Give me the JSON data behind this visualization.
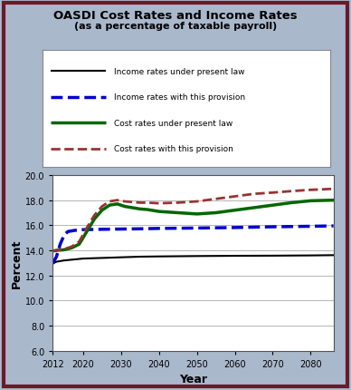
{
  "title": "OASDI Cost Rates and Income Rates",
  "subtitle": "(as a percentage of taxable payroll)",
  "xlabel": "Year",
  "ylabel": "Percent",
  "bg_color": "#aab8cc",
  "plot_bg_color": "#ffffff",
  "border_color": "#6b1a2a",
  "ylim": [
    6.0,
    20.0
  ],
  "xlim": [
    2012,
    2086
  ],
  "yticks": [
    6.0,
    8.0,
    10.0,
    12.0,
    14.0,
    16.0,
    18.0,
    20.0
  ],
  "xticks": [
    2012,
    2020,
    2030,
    2040,
    2050,
    2060,
    2070,
    2080
  ],
  "income_present_law": {
    "years": [
      2012,
      2013,
      2015,
      2020,
      2025,
      2030,
      2035,
      2040,
      2050,
      2060,
      2070,
      2080,
      2086
    ],
    "values": [
      12.95,
      13.1,
      13.2,
      13.35,
      13.4,
      13.45,
      13.5,
      13.52,
      13.55,
      13.57,
      13.58,
      13.6,
      13.62
    ],
    "color": "#000000",
    "linestyle": "-",
    "linewidth": 1.5,
    "label": "Income rates under present law"
  },
  "income_provision": {
    "years": [
      2012,
      2013,
      2014,
      2015,
      2016,
      2018,
      2020,
      2025,
      2030,
      2035,
      2040,
      2050,
      2060,
      2070,
      2080,
      2086
    ],
    "values": [
      12.95,
      13.5,
      14.5,
      15.2,
      15.5,
      15.6,
      15.65,
      15.68,
      15.7,
      15.72,
      15.75,
      15.78,
      15.82,
      15.88,
      15.92,
      15.95
    ],
    "color": "#0000cc",
    "linestyle": "--",
    "linewidth": 2.5,
    "label": "Income rates with this provision"
  },
  "cost_present_law": {
    "years": [
      2012,
      2013,
      2015,
      2017,
      2019,
      2021,
      2023,
      2025,
      2027,
      2029,
      2031,
      2033,
      2035,
      2037,
      2040,
      2045,
      2050,
      2055,
      2060,
      2065,
      2070,
      2075,
      2080,
      2086
    ],
    "values": [
      13.95,
      14.0,
      14.05,
      14.2,
      14.5,
      15.5,
      16.5,
      17.2,
      17.6,
      17.7,
      17.5,
      17.4,
      17.3,
      17.25,
      17.1,
      17.0,
      16.9,
      17.0,
      17.2,
      17.4,
      17.6,
      17.8,
      17.95,
      18.0
    ],
    "color": "#006600",
    "linestyle": "-",
    "linewidth": 2.5,
    "label": "Cost rates under present law"
  },
  "cost_provision": {
    "years": [
      2012,
      2013,
      2015,
      2017,
      2019,
      2021,
      2023,
      2025,
      2027,
      2029,
      2031,
      2033,
      2035,
      2037,
      2040,
      2045,
      2050,
      2055,
      2060,
      2065,
      2070,
      2075,
      2080,
      2086
    ],
    "values": [
      13.95,
      14.0,
      14.1,
      14.3,
      14.7,
      15.8,
      16.8,
      17.5,
      17.9,
      18.0,
      17.9,
      17.85,
      17.8,
      17.8,
      17.75,
      17.8,
      17.9,
      18.1,
      18.3,
      18.5,
      18.6,
      18.72,
      18.82,
      18.9
    ],
    "color": "#993333",
    "linestyle": "--",
    "linewidth": 2.0,
    "label": "Cost rates with this provision"
  }
}
